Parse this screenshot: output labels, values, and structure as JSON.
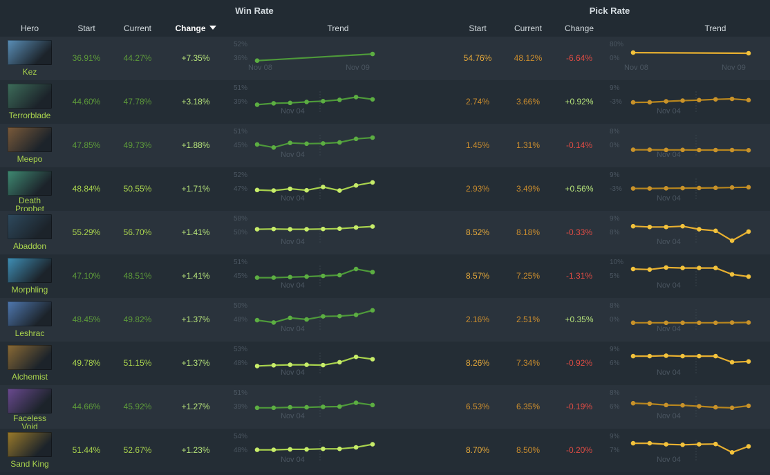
{
  "header": {
    "win_rate_title": "Win Rate",
    "pick_rate_title": "Pick Rate",
    "columns": {
      "hero": "Hero",
      "wr_start": "Start",
      "wr_current": "Current",
      "wr_change": "Change",
      "wr_trend": "Trend",
      "pr_start": "Start",
      "pr_current": "Current",
      "pr_change": "Change",
      "pr_trend": "Trend"
    },
    "sorted_column": "wr_change",
    "sort_direction": "descending"
  },
  "colors": {
    "background": "#222b33",
    "row_odd": "#2a333c",
    "row_even": "#242d35",
    "win_green": "#5d9a3a",
    "win_green_bright": "#a9d34d",
    "positive": "#b6e37a",
    "negative": "#e04c44",
    "pick_orange": "#c98c2e",
    "pick_orange_bright": "#e6a93a"
  },
  "rows": [
    {
      "hero": "Kez",
      "portrait": "#5a8fb8",
      "wr_start": "36.91%",
      "wr_current": "44.27%",
      "wr_change": "+7.35%",
      "pr_start": "54.76%",
      "pr_current": "48.12%",
      "pr_change": "-6.64%",
      "wr_trend": {
        "top": "52%",
        "bottom": "36%",
        "xlabels": [
          "Nov 08",
          "Nov 09"
        ],
        "points": [
          0.33,
          0.77
        ]
      },
      "pr_trend": {
        "top": "80%",
        "bottom": "0%",
        "xlabels": [
          "Nov 08",
          "Nov 09"
        ],
        "points": [
          0.86,
          0.82
        ]
      }
    },
    {
      "hero": "Terrorblade",
      "portrait": "#3d6d5a",
      "wr_start": "44.60%",
      "wr_current": "47.78%",
      "wr_change": "+3.18%",
      "pr_start": "2.74%",
      "pr_current": "3.66%",
      "pr_change": "+0.92%",
      "wr_trend": {
        "top": "51%",
        "bottom": "39%",
        "xlabels": [
          "Nov 04"
        ],
        "points": [
          0.3,
          0.39,
          0.42,
          0.48,
          0.53,
          0.62,
          0.8,
          0.65
        ]
      },
      "pr_trend": {
        "top": "9%",
        "bottom": "-3%",
        "xlabels": [
          "Nov 04"
        ],
        "points": [
          0.45,
          0.46,
          0.52,
          0.57,
          0.6,
          0.65,
          0.68,
          0.6
        ]
      }
    },
    {
      "hero": "Meepo",
      "portrait": "#7a5a3a",
      "wr_start": "47.85%",
      "wr_current": "49.73%",
      "wr_change": "+1.88%",
      "pr_start": "1.45%",
      "pr_current": "1.31%",
      "pr_change": "-0.14%",
      "wr_trend": {
        "top": "51%",
        "bottom": "45%",
        "xlabels": [
          "Nov 04"
        ],
        "points": [
          0.55,
          0.35,
          0.65,
          0.6,
          0.62,
          0.68,
          0.92,
          1.0
        ]
      },
      "pr_trend": {
        "top": "8%",
        "bottom": "0%",
        "xlabels": [
          "Nov 04"
        ],
        "points": [
          0.2,
          0.2,
          0.19,
          0.19,
          0.18,
          0.18,
          0.18,
          0.17
        ]
      }
    },
    {
      "hero": "Death Prophet",
      "portrait": "#3f8a72",
      "wr_start": "48.84%",
      "wr_current": "50.55%",
      "wr_change": "+1.71%",
      "pr_start": "2.93%",
      "pr_current": "3.49%",
      "pr_change": "+0.56%",
      "wr_trend": {
        "top": "52%",
        "bottom": "47%",
        "xlabels": [
          "Nov 04"
        ],
        "points": [
          0.42,
          0.38,
          0.5,
          0.4,
          0.62,
          0.38,
          0.72,
          0.92
        ]
      },
      "pr_trend": {
        "top": "9%",
        "bottom": "-3%",
        "xlabels": [
          "Nov 04"
        ],
        "points": [
          0.52,
          0.52,
          0.53,
          0.54,
          0.55,
          0.56,
          0.58,
          0.6
        ]
      }
    },
    {
      "hero": "Abaddon",
      "portrait": "#2e4a5e",
      "wr_start": "55.29%",
      "wr_current": "56.70%",
      "wr_change": "+1.41%",
      "pr_start": "8.52%",
      "pr_current": "8.18%",
      "pr_change": "-0.33%",
      "wr_trend": {
        "top": "58%",
        "bottom": "50%",
        "xlabels": [
          "Nov 04"
        ],
        "points": [
          0.7,
          0.72,
          0.7,
          0.7,
          0.72,
          0.74,
          0.82,
          0.88
        ]
      },
      "pr_trend": {
        "top": "9%",
        "bottom": "8%",
        "xlabels": [
          "Nov 04"
        ],
        "points": [
          0.9,
          0.85,
          0.85,
          0.9,
          0.7,
          0.6,
          -0.05,
          0.55
        ]
      }
    },
    {
      "hero": "Morphling",
      "portrait": "#3f8fb6",
      "wr_start": "47.10%",
      "wr_current": "48.51%",
      "wr_change": "+1.41%",
      "pr_start": "8.57%",
      "pr_current": "7.25%",
      "pr_change": "-1.31%",
      "wr_trend": {
        "top": "51%",
        "bottom": "45%",
        "xlabels": [
          "Nov 04"
        ],
        "points": [
          0.38,
          0.38,
          0.42,
          0.45,
          0.5,
          0.55,
          0.95,
          0.75
        ]
      },
      "pr_trend": {
        "top": "10%",
        "bottom": "5%",
        "xlabels": [
          "Nov 04"
        ],
        "points": [
          0.95,
          0.92,
          1.05,
          1.02,
          1.02,
          1.02,
          0.6,
          0.45
        ]
      }
    },
    {
      "hero": "Leshrac",
      "portrait": "#4f78b0",
      "wr_start": "48.45%",
      "wr_current": "49.82%",
      "wr_change": "+1.37%",
      "pr_start": "2.16%",
      "pr_current": "2.51%",
      "pr_change": "+0.35%",
      "wr_trend": {
        "top": "50%",
        "bottom": "48%",
        "xlabels": [
          "Nov 04"
        ],
        "points": [
          0.45,
          0.3,
          0.6,
          0.5,
          0.7,
          0.72,
          0.8,
          1.1
        ]
      },
      "pr_trend": {
        "top": "8%",
        "bottom": "0%",
        "xlabels": [
          "Nov 04"
        ],
        "points": [
          0.28,
          0.28,
          0.28,
          0.28,
          0.28,
          0.28,
          0.29,
          0.3
        ]
      }
    },
    {
      "hero": "Alchemist",
      "portrait": "#8a6a35",
      "wr_start": "49.78%",
      "wr_current": "51.15%",
      "wr_change": "+1.37%",
      "pr_start": "8.26%",
      "pr_current": "7.34%",
      "pr_change": "-0.92%",
      "wr_trend": {
        "top": "53%",
        "bottom": "48%",
        "xlabels": [
          "Nov 04"
        ],
        "points": [
          0.3,
          0.35,
          0.38,
          0.38,
          0.36,
          0.55,
          0.9,
          0.75
        ]
      },
      "pr_trend": {
        "top": "9%",
        "bottom": "6%",
        "xlabels": [
          "Nov 04"
        ],
        "points": [
          0.95,
          0.95,
          0.98,
          0.95,
          0.95,
          0.95,
          0.55,
          0.6
        ]
      }
    },
    {
      "hero": "Faceless Void",
      "portrait": "#6a4a90",
      "wr_start": "44.66%",
      "wr_current": "45.92%",
      "wr_change": "+1.27%",
      "pr_start": "6.53%",
      "pr_current": "6.35%",
      "pr_change": "-0.19%",
      "wr_trend": {
        "top": "51%",
        "bottom": "39%",
        "xlabels": [
          "Nov 04"
        ],
        "points": [
          0.42,
          0.42,
          0.45,
          0.45,
          0.48,
          0.5,
          0.75,
          0.6
        ]
      },
      "pr_trend": {
        "top": "8%",
        "bottom": "6%",
        "xlabels": [
          "Nov 04"
        ],
        "points": [
          0.72,
          0.68,
          0.6,
          0.58,
          0.52,
          0.45,
          0.42,
          0.55
        ]
      }
    },
    {
      "hero": "Sand King",
      "portrait": "#9a7a2a",
      "wr_start": "51.44%",
      "wr_current": "52.67%",
      "wr_change": "+1.23%",
      "pr_start": "8.70%",
      "pr_current": "8.50%",
      "pr_change": "-0.20%",
      "wr_trend": {
        "top": "54%",
        "bottom": "48%",
        "xlabels": [
          "Nov 04"
        ],
        "points": [
          0.52,
          0.52,
          0.55,
          0.55,
          0.58,
          0.58,
          0.68,
          0.88
        ]
      },
      "pr_trend": {
        "top": "9%",
        "bottom": "7%",
        "xlabels": [
          "Nov 04"
        ],
        "points": [
          0.95,
          0.95,
          0.88,
          0.85,
          0.88,
          0.9,
          0.35,
          0.75
        ]
      }
    }
  ]
}
